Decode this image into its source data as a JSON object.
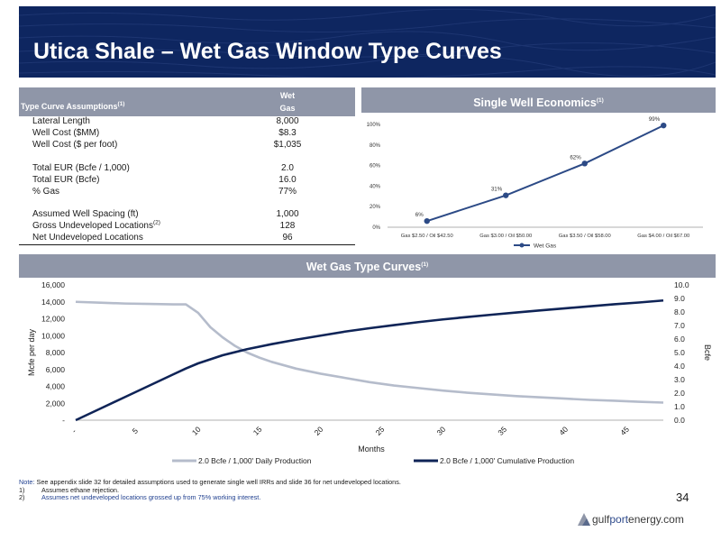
{
  "header": {
    "title": "Utica Shale – Wet Gas Window Type Curves"
  },
  "assumptions": {
    "header_label": "Type Curve Assumptions",
    "header_sup": "(1)",
    "col_header_line1": "Wet",
    "col_header_line2": "Gas",
    "rows": [
      {
        "label": "Lateral Length",
        "value": "8,000",
        "sup": ""
      },
      {
        "label": "Well Cost ($MM)",
        "value": "$8.3",
        "sup": ""
      },
      {
        "label": "Well Cost ($ per foot)",
        "value": "$1,035",
        "sup": ""
      },
      {
        "label": "Total EUR (Bcfe / 1,000)",
        "value": "2.0",
        "sup": ""
      },
      {
        "label": "Total EUR (Bcfe)",
        "value": "16.0",
        "sup": ""
      },
      {
        "label": "% Gas",
        "value": "77%",
        "sup": ""
      },
      {
        "label": "Assumed Well Spacing (ft)",
        "value": "1,000",
        "sup": ""
      },
      {
        "label": "Gross Undeveloped Locations",
        "value": "128",
        "sup": "(2)"
      },
      {
        "label": "Net Undeveloped Locations",
        "value": "96",
        "sup": ""
      }
    ]
  },
  "economics_panel": {
    "title": "Single Well Economics",
    "title_sup": "(1)"
  },
  "curves_panel": {
    "title": "Wet Gas Type Curves",
    "title_sup": "(1)"
  },
  "chart_data": [
    {
      "type": "line",
      "title": "Single Well Economics",
      "categories": [
        "Gas $2.50 / Oil $42.50",
        "Gas $3.00 / Oil $50.00",
        "Gas $3.50 / Oil $58.00",
        "Gas $4.00 / Oil $67.00"
      ],
      "series": [
        {
          "name": "Wet Gas",
          "values": [
            6,
            31,
            62,
            99
          ],
          "labels": [
            "6%",
            "31%",
            "62%",
            "99%"
          ],
          "color": "#2c4a86"
        }
      ],
      "y_ticks": [
        "0%",
        "20%",
        "40%",
        "60%",
        "80%",
        "100%"
      ],
      "ylim": [
        0,
        100
      ],
      "grid": false,
      "legend": "bottom"
    },
    {
      "type": "line",
      "title": "Wet Gas Type Curves",
      "xlabel": "Months",
      "ylabel": "Mcfe per day",
      "y2label": "Bcfe",
      "xlim": [
        0,
        48
      ],
      "ylim": [
        0,
        16000
      ],
      "y2lim": [
        0,
        10
      ],
      "x_ticks": [
        "-",
        "5",
        "10",
        "15",
        "20",
        "25",
        "30",
        "35",
        "40",
        "45"
      ],
      "y_ticks": [
        "-",
        "2,000",
        "4,000",
        "6,000",
        "8,000",
        "10,000",
        "12,000",
        "14,000",
        "16,000"
      ],
      "y2_ticks": [
        "0.0",
        "1.0",
        "2.0",
        "3.0",
        "4.0",
        "5.0",
        "6.0",
        "7.0",
        "8.0",
        "9.0",
        "10.0"
      ],
      "legend": "bottom",
      "series": [
        {
          "name": "2.0 Bcfe / 1,000' Daily Production",
          "axis": "left",
          "color": "#b5bccb",
          "x": [
            0,
            2,
            4,
            6,
            8,
            9,
            10,
            11,
            12,
            13,
            14,
            15,
            16,
            18,
            20,
            22,
            24,
            26,
            28,
            30,
            32,
            34,
            36,
            38,
            40,
            42,
            44,
            46,
            48
          ],
          "values": [
            14000,
            13900,
            13800,
            13750,
            13700,
            13700,
            12700,
            11000,
            9800,
            8800,
            8000,
            7400,
            6900,
            6100,
            5500,
            5000,
            4500,
            4100,
            3800,
            3500,
            3250,
            3050,
            2850,
            2700,
            2550,
            2400,
            2300,
            2180,
            2080
          ]
        },
        {
          "name": "2.0 Bcfe / 1,000' Cumulative Production",
          "axis": "right",
          "color": "#0f2457",
          "x": [
            0,
            2,
            4,
            6,
            8,
            9,
            10,
            12,
            14,
            16,
            18,
            20,
            22,
            24,
            26,
            28,
            30,
            32,
            34,
            36,
            38,
            40,
            42,
            44,
            46,
            48
          ],
          "values": [
            0,
            0.85,
            1.7,
            2.55,
            3.4,
            3.82,
            4.2,
            4.8,
            5.25,
            5.62,
            5.95,
            6.25,
            6.55,
            6.8,
            7.03,
            7.25,
            7.45,
            7.63,
            7.8,
            7.96,
            8.12,
            8.27,
            8.42,
            8.57,
            8.7,
            8.85
          ]
        }
      ]
    }
  ],
  "notes": {
    "note_key": "Note:",
    "note_text": " See appendix slide 32 for detailed assumptions used to generate single well IRRs and slide 36 for net undeveloped locations.",
    "items": [
      {
        "num": "1)",
        "text": "Assumes ethane rejection."
      },
      {
        "num": "2)",
        "text": "Assumes net undeveloped locations grossed up from 75% working interest."
      }
    ]
  },
  "footer": {
    "page_number": "34",
    "logo_pre": "gulf",
    "logo_mid": "port",
    "logo_post": "energy.com"
  }
}
